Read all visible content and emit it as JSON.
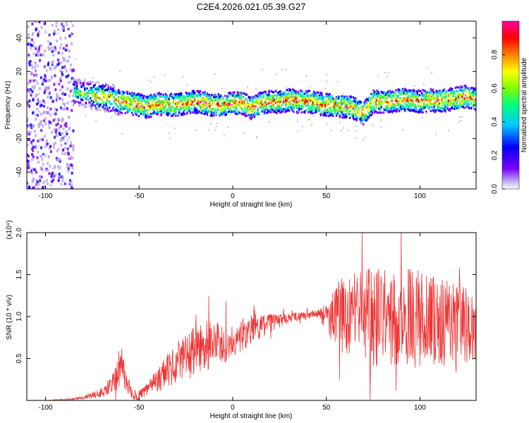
{
  "title": "C2E4.2026.021.05.39.G27",
  "chart_data": [
    {
      "type": "heatmap",
      "xlabel": "Height of straight line (km)",
      "ylabel": "Frequency (Hz)",
      "xlim": [
        -110,
        130
      ],
      "ylim": [
        -50,
        50
      ],
      "xticks": [
        "-100",
        "-50",
        "0",
        "50",
        "100"
      ],
      "yticks": [
        "-40",
        "-20",
        "0",
        "20",
        "40"
      ],
      "colorbar": {
        "label": "Normalized spectral amplitude",
        "range": [
          0,
          1
        ],
        "ticks": [
          "0.0",
          "0.2",
          "0.4",
          "0.6",
          "0.8"
        ],
        "colormap": [
          "#ffffff",
          "#b8a4f0",
          "#7a00ff",
          "#0000ff",
          "#00c8ff",
          "#00ff80",
          "#80ff00",
          "#ffff00",
          "#ff8000",
          "#ff0000",
          "#ff00a0"
        ]
      },
      "ridge": {
        "x": [
          -85,
          -80,
          -75,
          -70,
          -65,
          -60,
          -55,
          -50,
          -45,
          -40,
          -35,
          -30,
          -25,
          -20,
          -15,
          -10,
          -5,
          0,
          5,
          10,
          15,
          20,
          25,
          30,
          35,
          40,
          45,
          50,
          55,
          60,
          65,
          70,
          75,
          80,
          85,
          90,
          95,
          100,
          105,
          110,
          115,
          120,
          125,
          130
        ],
        "frequency": [
          8,
          7,
          6,
          5,
          4,
          2,
          1,
          0,
          -1,
          1,
          0,
          0,
          1,
          2,
          1,
          0,
          0,
          1,
          1,
          -2,
          1,
          2,
          2,
          3,
          2,
          2,
          1,
          0,
          0,
          -1,
          -2,
          -5,
          2,
          2,
          2,
          3,
          3,
          2,
          3,
          2,
          3,
          4,
          5,
          3
        ]
      },
      "noise_region_x": [
        -110,
        -85
      ]
    },
    {
      "type": "line",
      "xlabel": "Height of straight line (km)",
      "ylabel": "SNR (10 * v/v)",
      "y_scale_note": "(x10⁴)",
      "xlim": [
        -110,
        130
      ],
      "ylim": [
        0,
        2.0
      ],
      "xticks": [
        "-100",
        "-50",
        "0",
        "50",
        "100"
      ],
      "yticks": [
        "0.5",
        "1.0",
        "1.5",
        "2.0"
      ],
      "color": "#ee3333",
      "series": [
        {
          "x": [
            -110,
            -100,
            -90,
            -80,
            -75,
            -70,
            -65,
            -62,
            -60,
            -58,
            -56,
            -54,
            -52,
            -50,
            -47,
            -45,
            -40,
            -35,
            -30,
            -25,
            -20,
            -15,
            -10,
            -5,
            0,
            5,
            10,
            15,
            20,
            25,
            30,
            35,
            40,
            45,
            50,
            55,
            60,
            65,
            70,
            75,
            80,
            85,
            90,
            95,
            100,
            105,
            110,
            115,
            120,
            125,
            130
          ],
          "values": [
            0.0,
            0.0,
            0.01,
            0.03,
            0.06,
            0.1,
            0.18,
            0.3,
            0.45,
            0.35,
            0.2,
            0.08,
            0.05,
            0.06,
            0.1,
            0.15,
            0.25,
            0.35,
            0.45,
            0.5,
            0.6,
            0.65,
            0.68,
            0.7,
            0.72,
            0.78,
            0.85,
            0.9,
            0.92,
            0.95,
            0.98,
            1.0,
            1.02,
            1.03,
            1.0,
            1.0,
            1.0,
            1.0,
            0.97,
            1.0,
            1.0,
            1.0,
            1.0,
            0.98,
            0.97,
            0.95,
            0.93,
            0.93,
            0.92,
            0.9,
            0.9
          ],
          "spread": [
            0.0,
            0.0,
            0.01,
            0.02,
            0.04,
            0.06,
            0.1,
            0.2,
            0.25,
            0.2,
            0.12,
            0.06,
            0.05,
            0.06,
            0.08,
            0.1,
            0.15,
            0.2,
            0.25,
            0.28,
            0.3,
            0.3,
            0.28,
            0.25,
            0.22,
            0.2,
            0.18,
            0.15,
            0.12,
            0.08,
            0.06,
            0.05,
            0.04,
            0.05,
            0.15,
            0.4,
            0.5,
            0.55,
            0.6,
            0.65,
            0.65,
            0.6,
            0.6,
            0.6,
            0.6,
            0.55,
            0.55,
            0.5,
            0.5,
            0.45,
            0.4
          ]
        }
      ]
    }
  ]
}
